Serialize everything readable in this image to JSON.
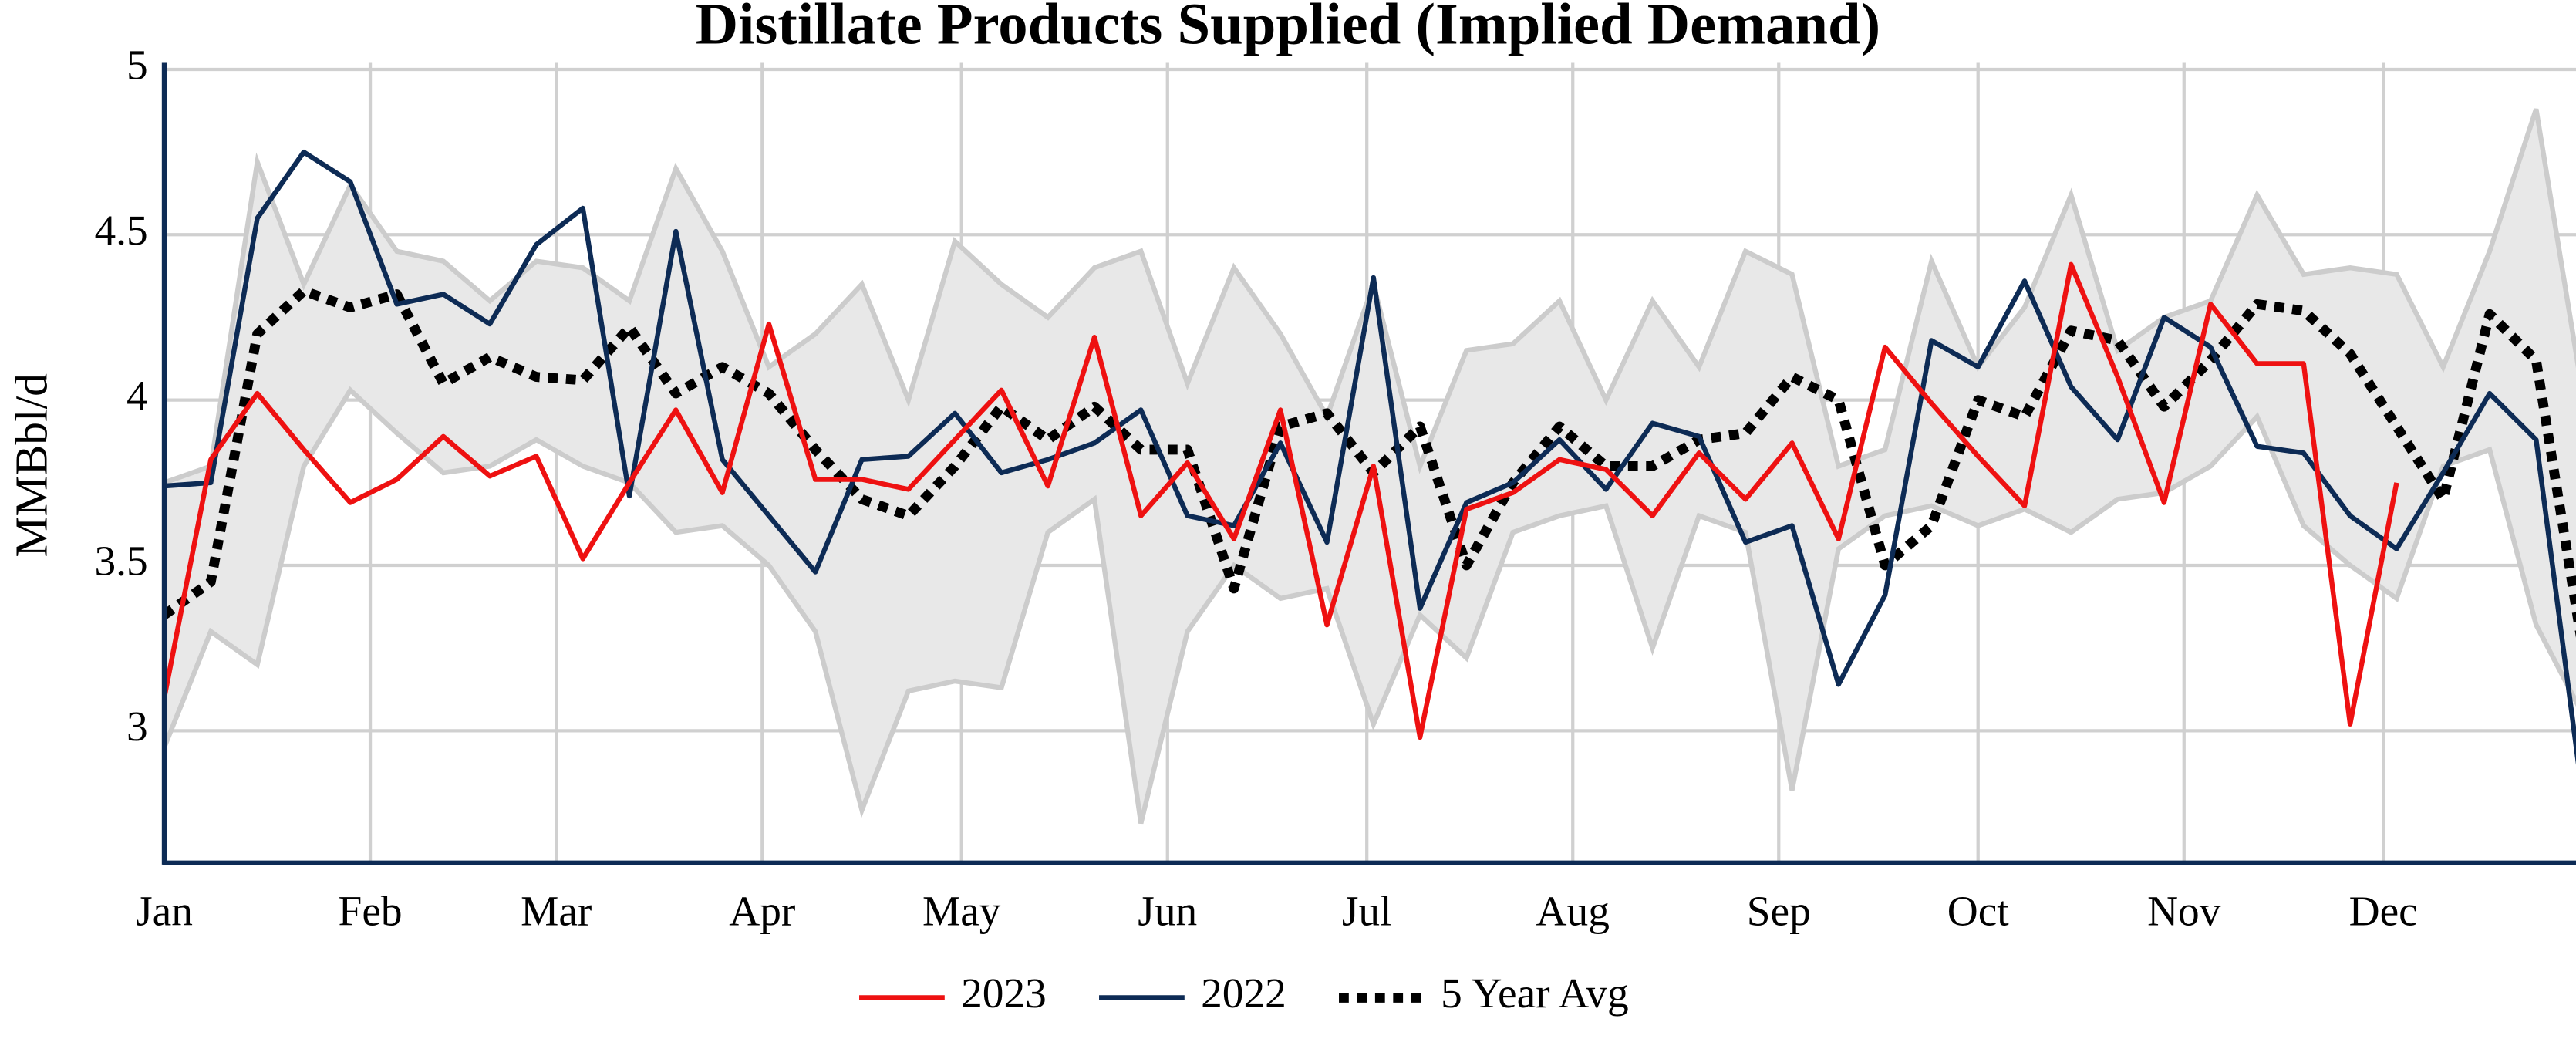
{
  "chart_data": {
    "type": "line",
    "title": "Distillate Products Supplied (Implied Demand)",
    "y_label": "MMBbl/d",
    "x": [
      0,
      7,
      14,
      21,
      28,
      35,
      42,
      49,
      56,
      63,
      70,
      77,
      84,
      91,
      98,
      105,
      112,
      119,
      126,
      133,
      140,
      147,
      154,
      161,
      168,
      175,
      182,
      189,
      196,
      203,
      210,
      217,
      224,
      231,
      238,
      245,
      252,
      259,
      266,
      273,
      280,
      287,
      294,
      301,
      308,
      315,
      322,
      329,
      336,
      343,
      350,
      357,
      364
    ],
    "xlim": [
      0,
      363
    ],
    "xticks": [
      {
        "value": 0,
        "label": "Jan"
      },
      {
        "value": 31,
        "label": "Feb"
      },
      {
        "value": 59,
        "label": "Mar"
      },
      {
        "value": 90,
        "label": "Apr"
      },
      {
        "value": 120,
        "label": "May"
      },
      {
        "value": 151,
        "label": "Jun"
      },
      {
        "value": 181,
        "label": "Jul"
      },
      {
        "value": 212,
        "label": "Aug"
      },
      {
        "value": 243,
        "label": "Sep"
      },
      {
        "value": 273,
        "label": "Oct"
      },
      {
        "value": 304,
        "label": "Nov"
      },
      {
        "value": 334,
        "label": "Dec"
      }
    ],
    "ylim": [
      2.6,
      5
    ],
    "yticks": [
      3,
      3.5,
      4,
      4.5,
      5
    ],
    "grid": true,
    "range": {
      "color": "#e8e8e8",
      "line_color": "#cccccc",
      "upper": [
        3.75,
        3.8,
        4.72,
        4.35,
        4.65,
        4.45,
        4.42,
        4.3,
        4.42,
        4.4,
        4.3,
        4.7,
        4.45,
        4.1,
        4.2,
        4.35,
        4.0,
        4.48,
        4.35,
        4.25,
        4.4,
        4.45,
        4.05,
        4.4,
        4.2,
        3.95,
        4.35,
        3.8,
        4.15,
        4.17,
        4.3,
        4.0,
        4.3,
        4.1,
        4.45,
        4.38,
        3.8,
        3.85,
        4.42,
        4.1,
        4.28,
        4.62,
        4.15,
        4.25,
        4.3,
        4.62,
        4.38,
        4.4,
        4.38,
        4.1,
        4.45,
        4.88,
        4.02
      ],
      "lower": [
        2.95,
        3.3,
        3.2,
        3.8,
        4.03,
        3.9,
        3.78,
        3.8,
        3.88,
        3.8,
        3.75,
        3.6,
        3.62,
        3.5,
        3.3,
        2.76,
        3.12,
        3.15,
        3.13,
        3.6,
        3.7,
        2.72,
        3.3,
        3.5,
        3.4,
        3.43,
        3.02,
        3.35,
        3.22,
        3.6,
        3.65,
        3.68,
        3.25,
        3.65,
        3.6,
        2.82,
        3.55,
        3.65,
        3.68,
        3.62,
        3.67,
        3.6,
        3.7,
        3.72,
        3.8,
        3.95,
        3.62,
        3.5,
        3.4,
        3.8,
        3.85,
        3.32,
        3.05
      ]
    },
    "series": [
      {
        "name": "2023",
        "color": "#ee1111",
        "dash": false,
        "values": [
          3.1,
          3.82,
          4.02,
          3.85,
          3.69,
          3.76,
          3.89,
          3.77,
          3.83,
          3.52,
          3.75,
          3.97,
          3.72,
          4.23,
          3.76,
          3.76,
          3.73,
          3.88,
          4.03,
          3.74,
          4.19,
          3.65,
          3.81,
          3.58,
          3.97,
          3.32,
          3.8,
          2.98,
          3.67,
          3.72,
          3.82,
          3.79,
          3.65,
          3.84,
          3.7,
          3.87,
          3.58,
          4.16,
          3.99,
          3.83,
          3.68,
          4.41,
          4.07,
          3.69,
          4.29,
          4.11,
          4.11,
          3.02,
          3.75,
          null,
          null,
          null,
          null
        ]
      },
      {
        "name": "2022",
        "color": "#0d2b55",
        "dash": false,
        "values": [
          3.74,
          3.75,
          4.55,
          4.75,
          4.66,
          4.29,
          4.32,
          4.23,
          4.47,
          4.58,
          3.71,
          4.51,
          3.82,
          3.65,
          3.48,
          3.82,
          3.83,
          3.96,
          3.78,
          3.82,
          3.87,
          3.97,
          3.65,
          3.62,
          3.87,
          3.57,
          4.37,
          3.37,
          3.69,
          3.75,
          3.88,
          3.73,
          3.93,
          3.89,
          3.57,
          3.62,
          3.14,
          3.41,
          4.18,
          4.1,
          4.36,
          4.04,
          3.88,
          4.25,
          4.16,
          3.86,
          3.84,
          3.65,
          3.55,
          3.78,
          4.02,
          3.88,
          2.8
        ]
      },
      {
        "name": "5 Year Avg",
        "color": "#000000",
        "dash": true,
        "values": [
          3.35,
          3.45,
          4.2,
          4.33,
          4.28,
          4.32,
          4.05,
          4.13,
          4.07,
          4.06,
          4.22,
          4.02,
          4.1,
          4.02,
          3.85,
          3.7,
          3.65,
          3.8,
          3.98,
          3.88,
          3.98,
          3.85,
          3.85,
          3.43,
          3.92,
          3.96,
          3.78,
          3.92,
          3.5,
          3.75,
          3.92,
          3.8,
          3.8,
          3.88,
          3.9,
          4.07,
          4.0,
          3.5,
          3.62,
          4.0,
          3.95,
          4.21,
          4.18,
          3.98,
          4.12,
          4.29,
          4.27,
          4.14,
          3.92,
          3.7,
          4.26,
          4.12,
          3.25
        ]
      }
    ]
  }
}
